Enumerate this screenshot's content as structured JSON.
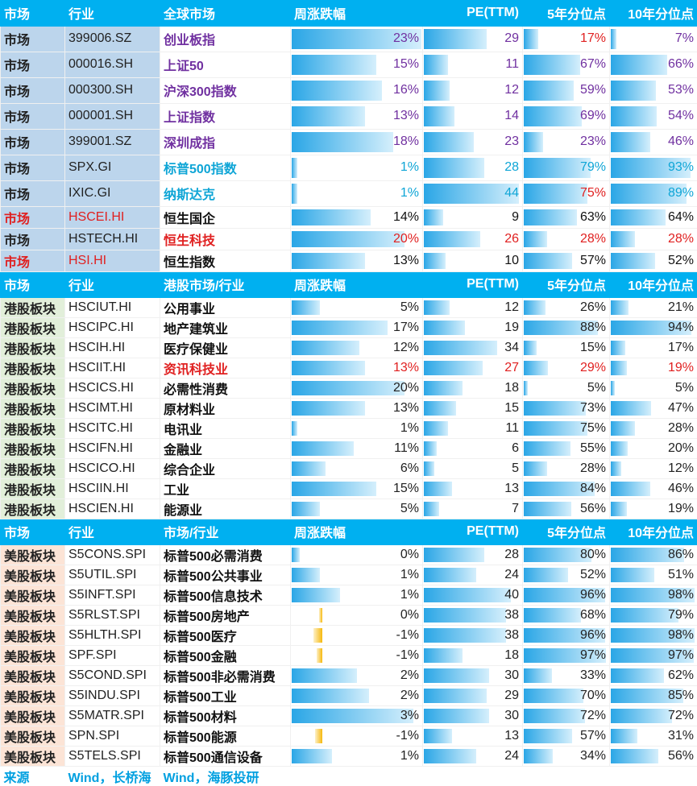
{
  "headers": {
    "main": [
      "市场",
      "行业",
      "全球市场",
      "周涨跌幅",
      "PE(TTM)",
      "5年分位点",
      "10年分位点"
    ],
    "hk": [
      "市场",
      "行业",
      "港股市场/行业",
      "周涨跌幅",
      "PE(TTM)",
      "5年分位点",
      "10年分位点"
    ],
    "us": [
      "市场",
      "行业",
      "市场/行业",
      "周涨跌幅",
      "PE(TTM)",
      "5年分位点",
      "10年分位点"
    ]
  },
  "global_rows": [
    {
      "market": "市场",
      "code": "399006.SZ",
      "name": "创业板指",
      "change": "23%",
      "change_v": 23,
      "pe": "29",
      "pe_v": 29,
      "p5": "17%",
      "p5_v": 17,
      "p10": "7%",
      "p10_v": 7,
      "nameColor": "purple",
      "numColor": "purple",
      "p5Color": "red",
      "p10Color": "purple"
    },
    {
      "market": "市场",
      "code": "000016.SH",
      "name": "上证50",
      "change": "15%",
      "change_v": 15,
      "pe": "11",
      "pe_v": 11,
      "p5": "67%",
      "p5_v": 67,
      "p10": "66%",
      "p10_v": 66,
      "nameColor": "purple",
      "numColor": "purple",
      "p5Color": "purple",
      "p10Color": "purple"
    },
    {
      "market": "市场",
      "code": "000300.SH",
      "name": "沪深300指数",
      "change": "16%",
      "change_v": 16,
      "pe": "12",
      "pe_v": 12,
      "p5": "59%",
      "p5_v": 59,
      "p10": "53%",
      "p10_v": 53,
      "nameColor": "purple",
      "numColor": "purple",
      "p5Color": "purple",
      "p10Color": "purple"
    },
    {
      "market": "市场",
      "code": "000001.SH",
      "name": "上证指数",
      "change": "13%",
      "change_v": 13,
      "pe": "14",
      "pe_v": 14,
      "p5": "69%",
      "p5_v": 69,
      "p10": "54%",
      "p10_v": 54,
      "nameColor": "purple",
      "numColor": "purple",
      "p5Color": "purple",
      "p10Color": "purple"
    },
    {
      "market": "市场",
      "code": "399001.SZ",
      "name": "深圳成指",
      "change": "18%",
      "change_v": 18,
      "pe": "23",
      "pe_v": 23,
      "p5": "23%",
      "p5_v": 23,
      "p10": "46%",
      "p10_v": 46,
      "nameColor": "purple",
      "numColor": "purple",
      "p5Color": "purple",
      "p10Color": "purple"
    },
    {
      "market": "市场",
      "code": "SPX.GI",
      "name": "标普500指数",
      "change": "1%",
      "change_v": 1,
      "pe": "28",
      "pe_v": 28,
      "p5": "79%",
      "p5_v": 79,
      "p10": "93%",
      "p10_v": 93,
      "nameColor": "teal",
      "numColor": "teal",
      "p5Color": "teal",
      "p10Color": "teal"
    },
    {
      "market": "市场",
      "code": "IXIC.GI",
      "name": "纳斯达克",
      "change": "1%",
      "change_v": 1,
      "pe": "44",
      "pe_v": 44,
      "p5": "75%",
      "p5_v": 75,
      "p10": "89%",
      "p10_v": 89,
      "nameColor": "teal",
      "numColor": "teal",
      "p5Color": "red",
      "p10Color": "teal"
    },
    {
      "market": "市场",
      "code": "HSCEI.HI",
      "name": "恒生国企",
      "change": "14%",
      "change_v": 14,
      "pe": "9",
      "pe_v": 9,
      "p5": "63%",
      "p5_v": 63,
      "p10": "64%",
      "p10_v": 64,
      "nameColor": "black",
      "numColor": "black",
      "p5Color": "black",
      "p10Color": "black",
      "marketColor": "red",
      "codeColor": "red"
    },
    {
      "market": "市场",
      "code": "HSTECH.HI",
      "name": "恒生科技",
      "change": "20%",
      "change_v": 20,
      "pe": "26",
      "pe_v": 26,
      "p5": "28%",
      "p5_v": 28,
      "p10": "28%",
      "p10_v": 28,
      "nameColor": "red",
      "numColor": "red",
      "p5Color": "red",
      "p10Color": "red"
    },
    {
      "market": "市场",
      "code": "HSI.HI",
      "name": "恒生指数",
      "change": "13%",
      "change_v": 13,
      "pe": "10",
      "pe_v": 10,
      "p5": "57%",
      "p5_v": 57,
      "p10": "52%",
      "p10_v": 52,
      "nameColor": "black",
      "numColor": "black",
      "p5Color": "black",
      "p10Color": "black",
      "marketColor": "red",
      "codeColor": "red"
    }
  ],
  "hk_rows": [
    {
      "market": "港股板块",
      "code": "HSCIUT.HI",
      "name": "公用事业",
      "change": "5%",
      "change_v": 5,
      "pe": "12",
      "pe_v": 12,
      "p5": "26%",
      "p5_v": 26,
      "p10": "21%",
      "p10_v": 21
    },
    {
      "market": "港股板块",
      "code": "HSCIPC.HI",
      "name": "地产建筑业",
      "change": "17%",
      "change_v": 17,
      "pe": "19",
      "pe_v": 19,
      "p5": "88%",
      "p5_v": 88,
      "p10": "94%",
      "p10_v": 94
    },
    {
      "market": "港股板块",
      "code": "HSCIH.HI",
      "name": "医疗保健业",
      "change": "12%",
      "change_v": 12,
      "pe": "34",
      "pe_v": 34,
      "p5": "15%",
      "p5_v": 15,
      "p10": "17%",
      "p10_v": 17
    },
    {
      "market": "港股板块",
      "code": "HSCIIT.HI",
      "name": "资讯科技业",
      "change": "13%",
      "change_v": 13,
      "pe": "27",
      "pe_v": 27,
      "p5": "29%",
      "p5_v": 29,
      "p10": "19%",
      "p10_v": 19,
      "red": true
    },
    {
      "market": "港股板块",
      "code": "HSCICS.HI",
      "name": "必需性消费",
      "change": "20%",
      "change_v": 20,
      "pe": "18",
      "pe_v": 18,
      "p5": "5%",
      "p5_v": 5,
      "p10": "5%",
      "p10_v": 5
    },
    {
      "market": "港股板块",
      "code": "HSCIMT.HI",
      "name": "原材料业",
      "change": "13%",
      "change_v": 13,
      "pe": "15",
      "pe_v": 15,
      "p5": "73%",
      "p5_v": 73,
      "p10": "47%",
      "p10_v": 47
    },
    {
      "market": "港股板块",
      "code": "HSCITC.HI",
      "name": "电讯业",
      "change": "1%",
      "change_v": 1,
      "pe": "11",
      "pe_v": 11,
      "p5": "75%",
      "p5_v": 75,
      "p10": "28%",
      "p10_v": 28
    },
    {
      "market": "港股板块",
      "code": "HSCIFN.HI",
      "name": "金融业",
      "change": "11%",
      "change_v": 11,
      "pe": "6",
      "pe_v": 6,
      "p5": "55%",
      "p5_v": 55,
      "p10": "20%",
      "p10_v": 20
    },
    {
      "market": "港股板块",
      "code": "HSCICO.HI",
      "name": "综合企业",
      "change": "6%",
      "change_v": 6,
      "pe": "5",
      "pe_v": 5,
      "p5": "28%",
      "p5_v": 28,
      "p10": "12%",
      "p10_v": 12
    },
    {
      "market": "港股板块",
      "code": "HSCIIN.HI",
      "name": "工业",
      "change": "15%",
      "change_v": 15,
      "pe": "13",
      "pe_v": 13,
      "p5": "84%",
      "p5_v": 84,
      "p10": "46%",
      "p10_v": 46
    },
    {
      "market": "港股板块",
      "code": "HSCIEN.HI",
      "name": "能源业",
      "change": "5%",
      "change_v": 5,
      "pe": "7",
      "pe_v": 7,
      "p5": "56%",
      "p5_v": 56,
      "p10": "19%",
      "p10_v": 19
    }
  ],
  "us_rows": [
    {
      "market": "美股板块",
      "code": "S5CONS.SPI",
      "name": "标普500必需消费",
      "change": "0%",
      "change_v": 0.2,
      "pe": "28",
      "pe_v": 28,
      "p5": "80%",
      "p5_v": 80,
      "p10": "86%",
      "p10_v": 86
    },
    {
      "market": "美股板块",
      "code": "S5UTIL.SPI",
      "name": "标普500公共事业",
      "change": "1%",
      "change_v": 0.7,
      "pe": "24",
      "pe_v": 24,
      "p5": "52%",
      "p5_v": 52,
      "p10": "51%",
      "p10_v": 51
    },
    {
      "market": "美股板块",
      "code": "S5INFT.SPI",
      "name": "标普500信息技术",
      "change": "1%",
      "change_v": 1.2,
      "pe": "40",
      "pe_v": 40,
      "p5": "96%",
      "p5_v": 96,
      "p10": "98%",
      "p10_v": 98
    },
    {
      "market": "美股板块",
      "code": "S5RLST.SPI",
      "name": "标普500房地产",
      "change": "0%",
      "change_v": -0.3,
      "pe": "38",
      "pe_v": 38,
      "p5": "68%",
      "p5_v": 68,
      "p10": "79%",
      "p10_v": 79
    },
    {
      "market": "美股板块",
      "code": "S5HLTH.SPI",
      "name": "标普500医疗",
      "change": "-1%",
      "change_v": -1.2,
      "pe": "38",
      "pe_v": 38,
      "p5": "96%",
      "p5_v": 96,
      "p10": "98%",
      "p10_v": 98
    },
    {
      "market": "美股板块",
      "code": "SPF.SPI",
      "name": "标普500金融",
      "change": "-1%",
      "change_v": -0.8,
      "pe": "18",
      "pe_v": 18,
      "p5": "97%",
      "p5_v": 97,
      "p10": "97%",
      "p10_v": 97
    },
    {
      "market": "美股板块",
      "code": "S5COND.SPI",
      "name": "标普500非必需消费",
      "change": "2%",
      "change_v": 1.6,
      "pe": "30",
      "pe_v": 30,
      "p5": "33%",
      "p5_v": 33,
      "p10": "62%",
      "p10_v": 62
    },
    {
      "market": "美股板块",
      "code": "S5INDU.SPI",
      "name": "标普500工业",
      "change": "2%",
      "change_v": 1.9,
      "pe": "29",
      "pe_v": 29,
      "p5": "70%",
      "p5_v": 70,
      "p10": "85%",
      "p10_v": 85
    },
    {
      "market": "美股板块",
      "code": "S5MATR.SPI",
      "name": "标普500材料",
      "change": "3%",
      "change_v": 3,
      "pe": "30",
      "pe_v": 30,
      "p5": "72%",
      "p5_v": 72,
      "p10": "72%",
      "p10_v": 72
    },
    {
      "market": "美股板块",
      "code": "SPN.SPI",
      "name": "标普500能源",
      "change": "-1%",
      "change_v": -1,
      "pe": "13",
      "pe_v": 13,
      "p5": "57%",
      "p5_v": 57,
      "p10": "31%",
      "p10_v": 31
    },
    {
      "market": "美股板块",
      "code": "S5TELS.SPI",
      "name": "标普500通信设备",
      "change": "1%",
      "change_v": 1,
      "pe": "24",
      "pe_v": 24,
      "p5": "34%",
      "p5_v": 34,
      "p10": "56%",
      "p10_v": 56
    }
  ],
  "footer": {
    "label": "来源",
    "source1": "Wind，长桥海",
    "source2": "Wind，海豚投研"
  },
  "colors": {
    "header": "#00b0f0",
    "bar": "#2aa6e6",
    "neg_bar": "#f6b90e",
    "purple": "#7030a0",
    "teal": "#0ea5d6",
    "red": "#e02020"
  }
}
